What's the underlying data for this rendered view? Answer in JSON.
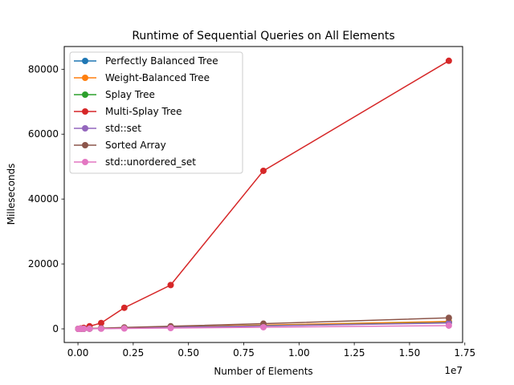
{
  "chart_data": {
    "type": "line",
    "title": "Runtime of Sequential Queries on All Elements",
    "xlabel": "Number of Elements",
    "ylabel": "Milleseconds",
    "x_offset_label": "1e7",
    "xlim": [
      -620000,
      17400000
    ],
    "ylim": [
      -4200,
      87000
    ],
    "xticks": [
      0,
      2500000,
      5000000,
      7500000,
      10000000,
      12500000,
      15000000,
      17500000
    ],
    "xtick_labels": [
      "0.00",
      "0.25",
      "0.50",
      "0.75",
      "1.00",
      "1.25",
      "1.50",
      "1.75"
    ],
    "yticks": [
      0,
      20000,
      40000,
      60000,
      80000
    ],
    "ytick_labels": [
      "0",
      "20000",
      "40000",
      "60000",
      "80000"
    ],
    "grid": false,
    "legend_position": "top-left",
    "x": [
      16384,
      32768,
      65536,
      131072,
      262144,
      524288,
      1048576,
      2097152,
      4194304,
      8388608,
      16777216
    ],
    "series": [
      {
        "name": "Perfectly Balanced Tree",
        "color": "#1f77b4",
        "values": [
          1,
          2,
          5,
          10,
          25,
          55,
          120,
          260,
          520,
          1050,
          2100
        ]
      },
      {
        "name": "Weight-Balanced Tree",
        "color": "#ff7f0e",
        "values": [
          1,
          3,
          6,
          12,
          28,
          60,
          130,
          280,
          560,
          1150,
          2300
        ]
      },
      {
        "name": "Splay Tree",
        "color": "#2ca02c",
        "values": [
          1,
          2,
          5,
          11,
          24,
          52,
          110,
          230,
          480,
          950,
          1900
        ]
      },
      {
        "name": "Multi-Splay Tree",
        "color": "#d62728",
        "values": [
          5,
          15,
          40,
          120,
          300,
          800,
          1800,
          6500,
          13500,
          48700,
          82600
        ]
      },
      {
        "name": "std::set",
        "color": "#9467bd",
        "values": [
          1,
          2,
          4,
          9,
          20,
          45,
          100,
          220,
          460,
          900,
          1800
        ]
      },
      {
        "name": "Sorted Array",
        "color": "#8c564b",
        "values": [
          2,
          4,
          9,
          20,
          45,
          95,
          200,
          420,
          800,
          1600,
          3400
        ]
      },
      {
        "name": "std::unordered_set",
        "color": "#e377c2",
        "values": [
          1,
          1,
          3,
          6,
          12,
          25,
          55,
          120,
          250,
          500,
          1000
        ]
      }
    ]
  }
}
